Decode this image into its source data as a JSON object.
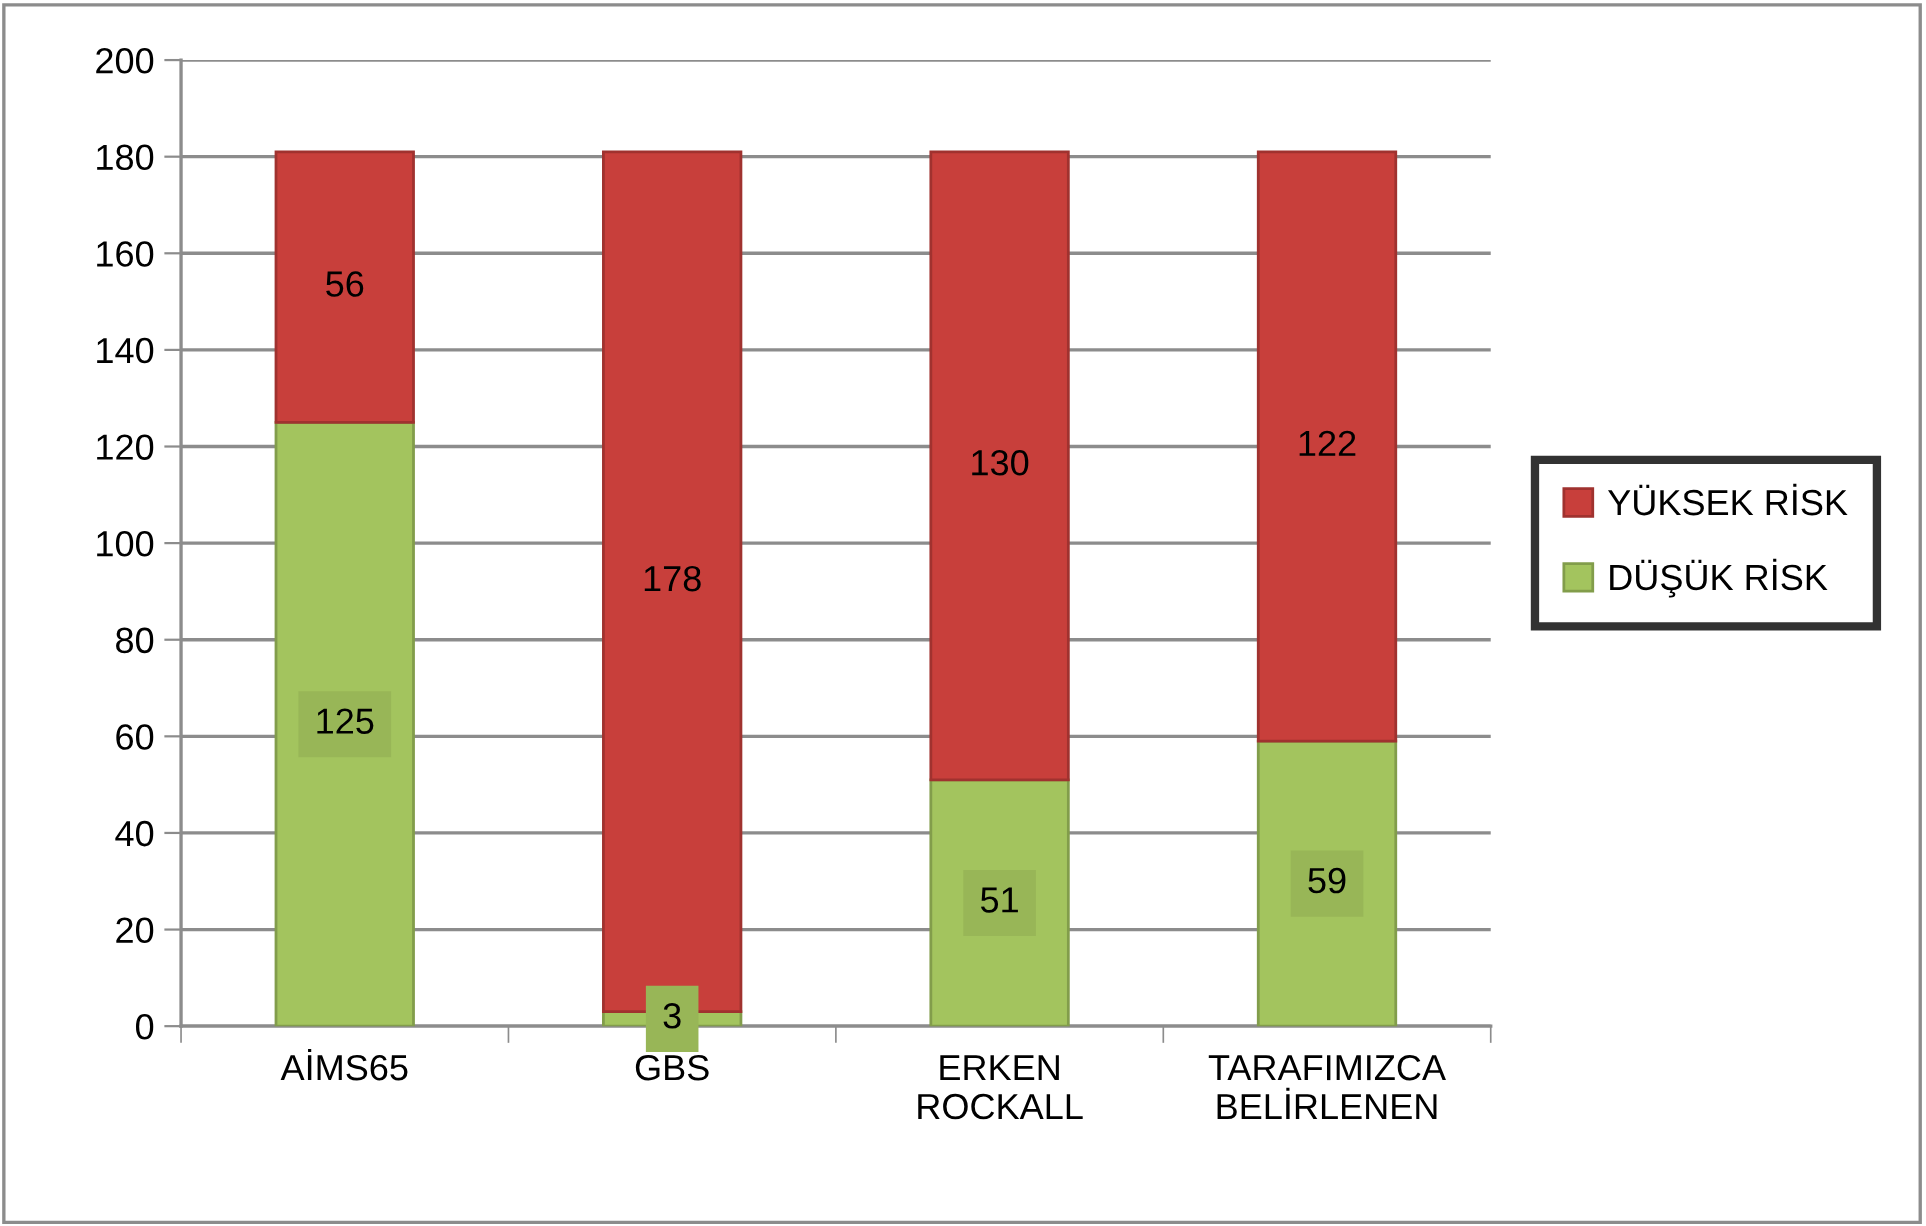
{
  "chart_data": {
    "type": "bar",
    "stacked": true,
    "categories": [
      "AİMS65",
      "GBS",
      "ERKEN\nROCKALL",
      "TARAFIMIZCA\nBELİRLENEN"
    ],
    "series": [
      {
        "name": "DÜŞÜK RİSK",
        "color": "#a3c45e",
        "values": [
          125,
          3,
          51,
          59
        ]
      },
      {
        "name": "YÜKSEK RİSK",
        "color": "#c83f3b",
        "values": [
          56,
          178,
          130,
          122
        ]
      }
    ],
    "ylim": [
      0,
      200
    ],
    "yticks": [
      0,
      20,
      40,
      60,
      80,
      100,
      120,
      140,
      160,
      180,
      200
    ],
    "grid": "y",
    "legend": "right",
    "data_labels": true
  }
}
